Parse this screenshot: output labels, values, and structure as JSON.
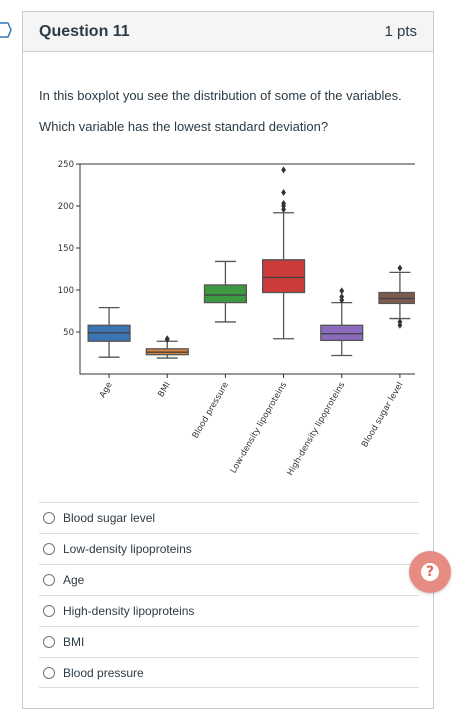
{
  "question": {
    "title": "Question 11",
    "points": "1 pts",
    "text_line1": "In this boxplot you see the distribution of some of the variables.",
    "text_line2": "Which variable has the lowest standard deviation?"
  },
  "answers": [
    {
      "label": "Blood sugar level"
    },
    {
      "label": "Low-density lipoproteins"
    },
    {
      "label": "Age"
    },
    {
      "label": "High-density lipoproteins"
    },
    {
      "label": "BMI"
    },
    {
      "label": "Blood pressure"
    }
  ],
  "help_icon": "question-mark-icon",
  "colors": {
    "help_button": "#e78c83",
    "card_border": "#c7cdd1"
  },
  "chart_data": {
    "type": "box",
    "title": "",
    "xlabel": "",
    "ylabel": "",
    "ylim": [
      0,
      250
    ],
    "yticks": [
      50,
      100,
      150,
      200,
      250
    ],
    "categories": [
      "Age",
      "BMI",
      "Blood pressure",
      "Low-density lipoproteins",
      "High-density lipoproteins",
      "Blood sugar level"
    ],
    "boxes": [
      {
        "name": "Age",
        "color": "#3b74b2",
        "whisker_low": 20,
        "q1": 39,
        "median": 49,
        "q3": 58,
        "whisker_high": 79,
        "outliers": []
      },
      {
        "name": "BMI",
        "color": "#d9823a",
        "whisker_low": 19,
        "q1": 23,
        "median": 26,
        "q3": 30,
        "whisker_high": 39,
        "outliers": [
          41,
          42
        ]
      },
      {
        "name": "Blood pressure",
        "color": "#3e9a42",
        "whisker_low": 62,
        "q1": 85,
        "median": 94,
        "q3": 106,
        "whisker_high": 134,
        "outliers": []
      },
      {
        "name": "Low-density lipoproteins",
        "color": "#cc3a3a",
        "whisker_low": 42,
        "q1": 97,
        "median": 115,
        "q3": 136,
        "whisker_high": 192,
        "outliers": [
          196,
          200,
          203,
          216,
          243
        ]
      },
      {
        "name": "High-density lipoproteins",
        "color": "#8c6bbf",
        "whisker_low": 22,
        "q1": 40,
        "median": 48,
        "q3": 58,
        "whisker_high": 85,
        "outliers": [
          88,
          92,
          99
        ]
      },
      {
        "name": "Blood sugar level",
        "color": "#7d5a50",
        "whisker_low": 66,
        "q1": 84,
        "median": 90,
        "q3": 97,
        "whisker_high": 121,
        "outliers": [
          58,
          62,
          126
        ]
      }
    ]
  }
}
